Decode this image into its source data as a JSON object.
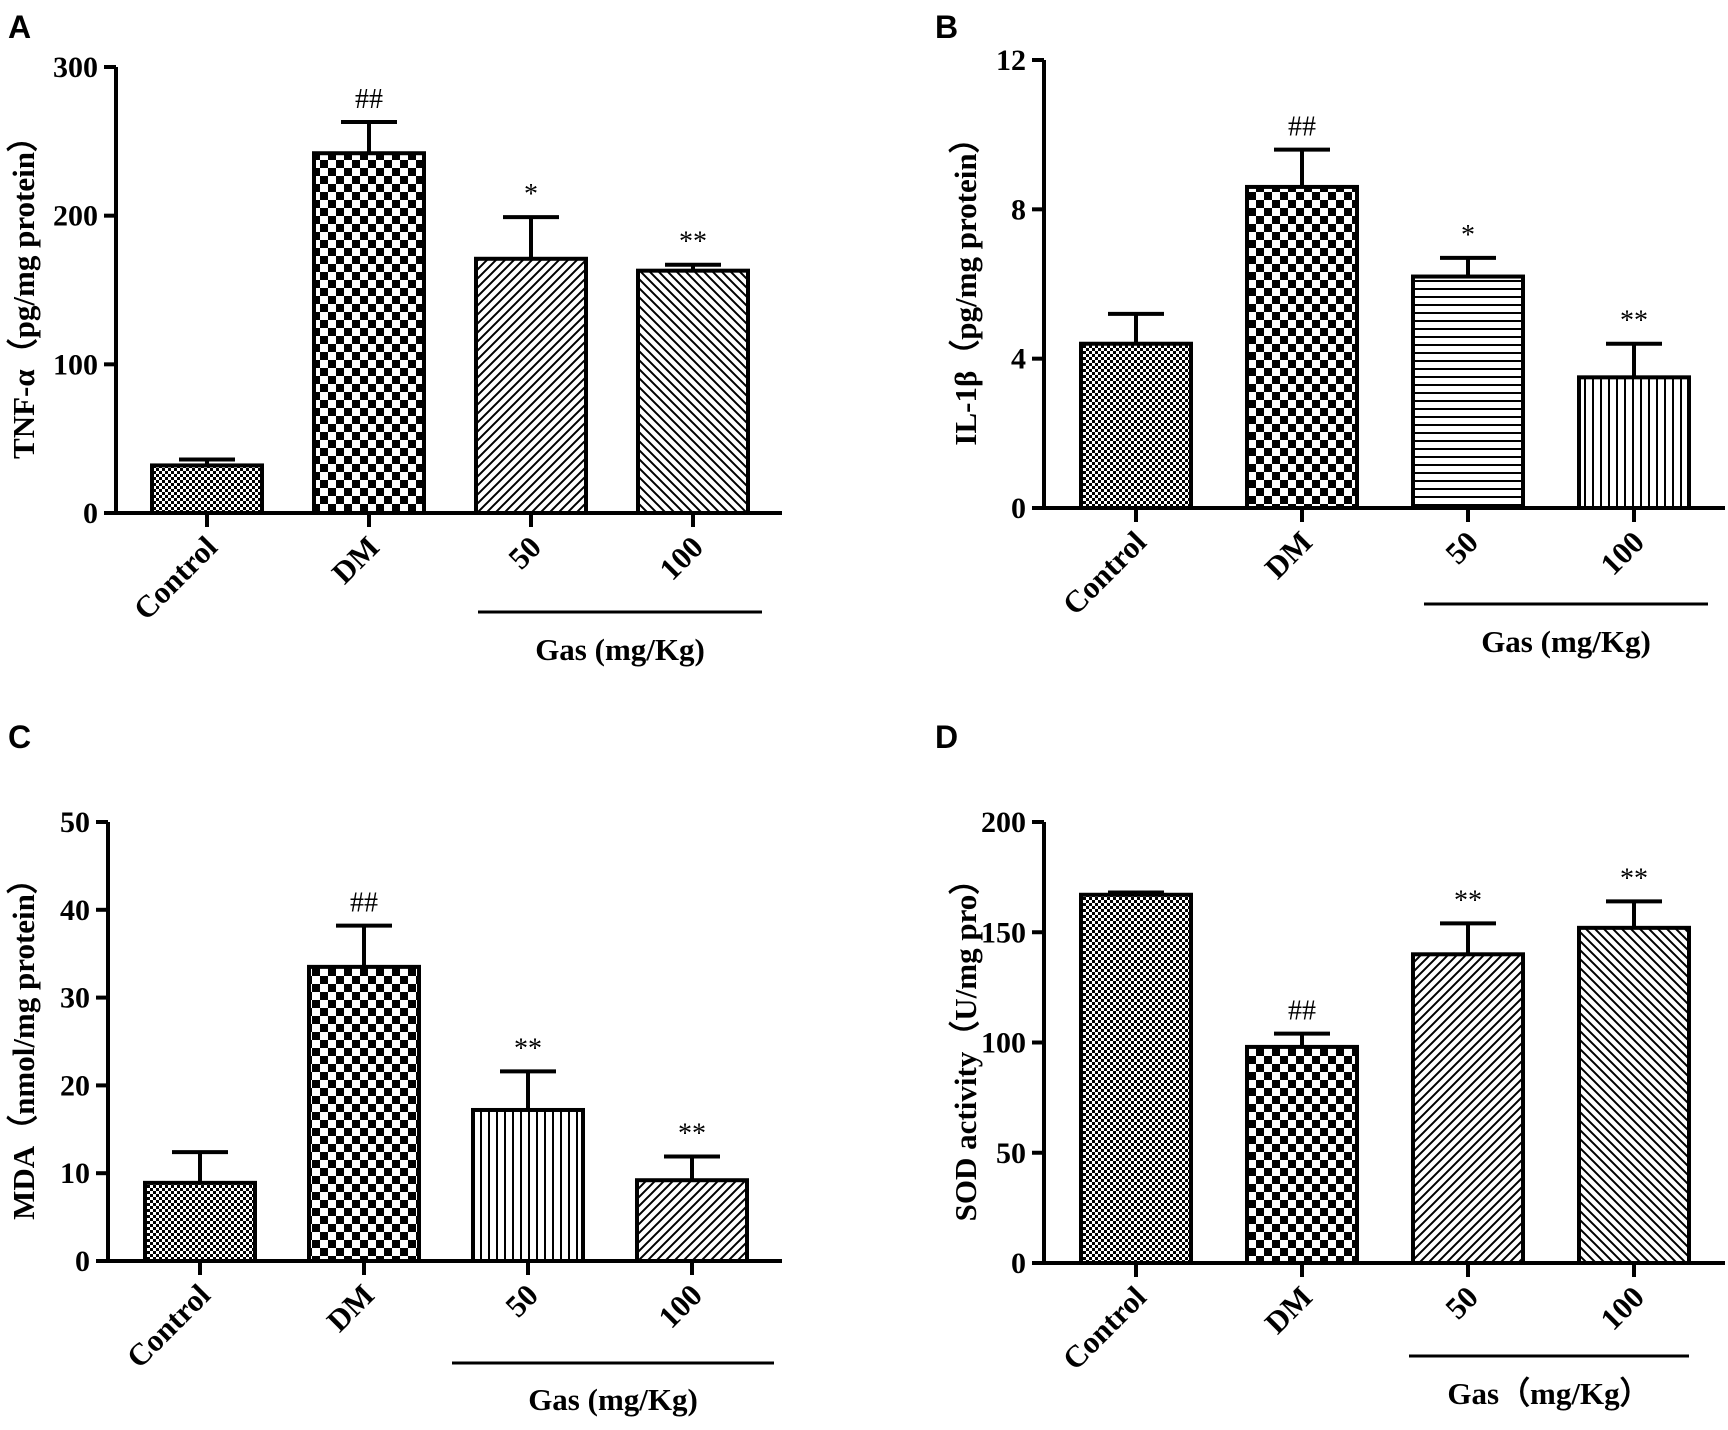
{
  "chart_data": [
    {
      "panel": "A",
      "type": "bar",
      "ylabel": "TNF-α（pg/mg protein）",
      "ylim": [
        0,
        300
      ],
      "yticks": [
        0,
        100,
        200,
        300
      ],
      "categories": [
        "Control",
        "DM",
        "50",
        "100"
      ],
      "values": [
        32,
        242,
        171,
        163
      ],
      "errors": [
        4,
        21,
        28,
        4
      ],
      "significance": [
        "",
        "##",
        "*",
        "**"
      ],
      "patterns": [
        "fine-check",
        "checker",
        "diag-right",
        "diag-left"
      ],
      "group_label": "Gas (mg/Kg)",
      "group_span": [
        2,
        3
      ]
    },
    {
      "panel": "B",
      "type": "bar",
      "ylabel": "IL-1β（pg/mg protein）",
      "ylim": [
        0,
        12
      ],
      "yticks": [
        0,
        4,
        8,
        12
      ],
      "categories": [
        "Control",
        "DM",
        "50",
        "100"
      ],
      "values": [
        4.4,
        8.6,
        6.2,
        3.5
      ],
      "errors": [
        0.8,
        1.0,
        0.5,
        0.9
      ],
      "significance": [
        "",
        "##",
        "*",
        "**"
      ],
      "patterns": [
        "fine-check",
        "checker",
        "horiz",
        "vert"
      ],
      "group_label": "Gas (mg/Kg)",
      "group_span": [
        2,
        3
      ]
    },
    {
      "panel": "C",
      "type": "bar",
      "ylabel": "MDA（nmol/mg protein）",
      "ylim": [
        0,
        50
      ],
      "yticks": [
        0,
        10,
        20,
        30,
        40,
        50
      ],
      "categories": [
        "Control",
        "DM",
        "50",
        "100"
      ],
      "values": [
        8.9,
        33.5,
        17.2,
        9.2
      ],
      "errors": [
        3.5,
        4.7,
        4.4,
        2.7
      ],
      "significance": [
        "",
        "##",
        "**",
        "**"
      ],
      "patterns": [
        "fine-check",
        "checker",
        "vert",
        "diag-right"
      ],
      "group_label": "Gas (mg/Kg)",
      "group_span": [
        2,
        3
      ]
    },
    {
      "panel": "D",
      "type": "bar",
      "ylabel": "SOD activity（U/mg pro）",
      "ylim": [
        0,
        200
      ],
      "yticks": [
        0,
        50,
        100,
        150,
        200
      ],
      "categories": [
        "Control",
        "DM",
        "50",
        "100"
      ],
      "values": [
        167,
        98,
        140,
        152
      ],
      "errors": [
        1,
        6,
        14,
        12
      ],
      "significance": [
        "",
        "##",
        "**",
        "**"
      ],
      "patterns": [
        "fine-check",
        "checker",
        "diag-right",
        "diag-left"
      ],
      "group_label": "Gas（mg/Kg）",
      "group_span": [
        2,
        3
      ]
    }
  ]
}
